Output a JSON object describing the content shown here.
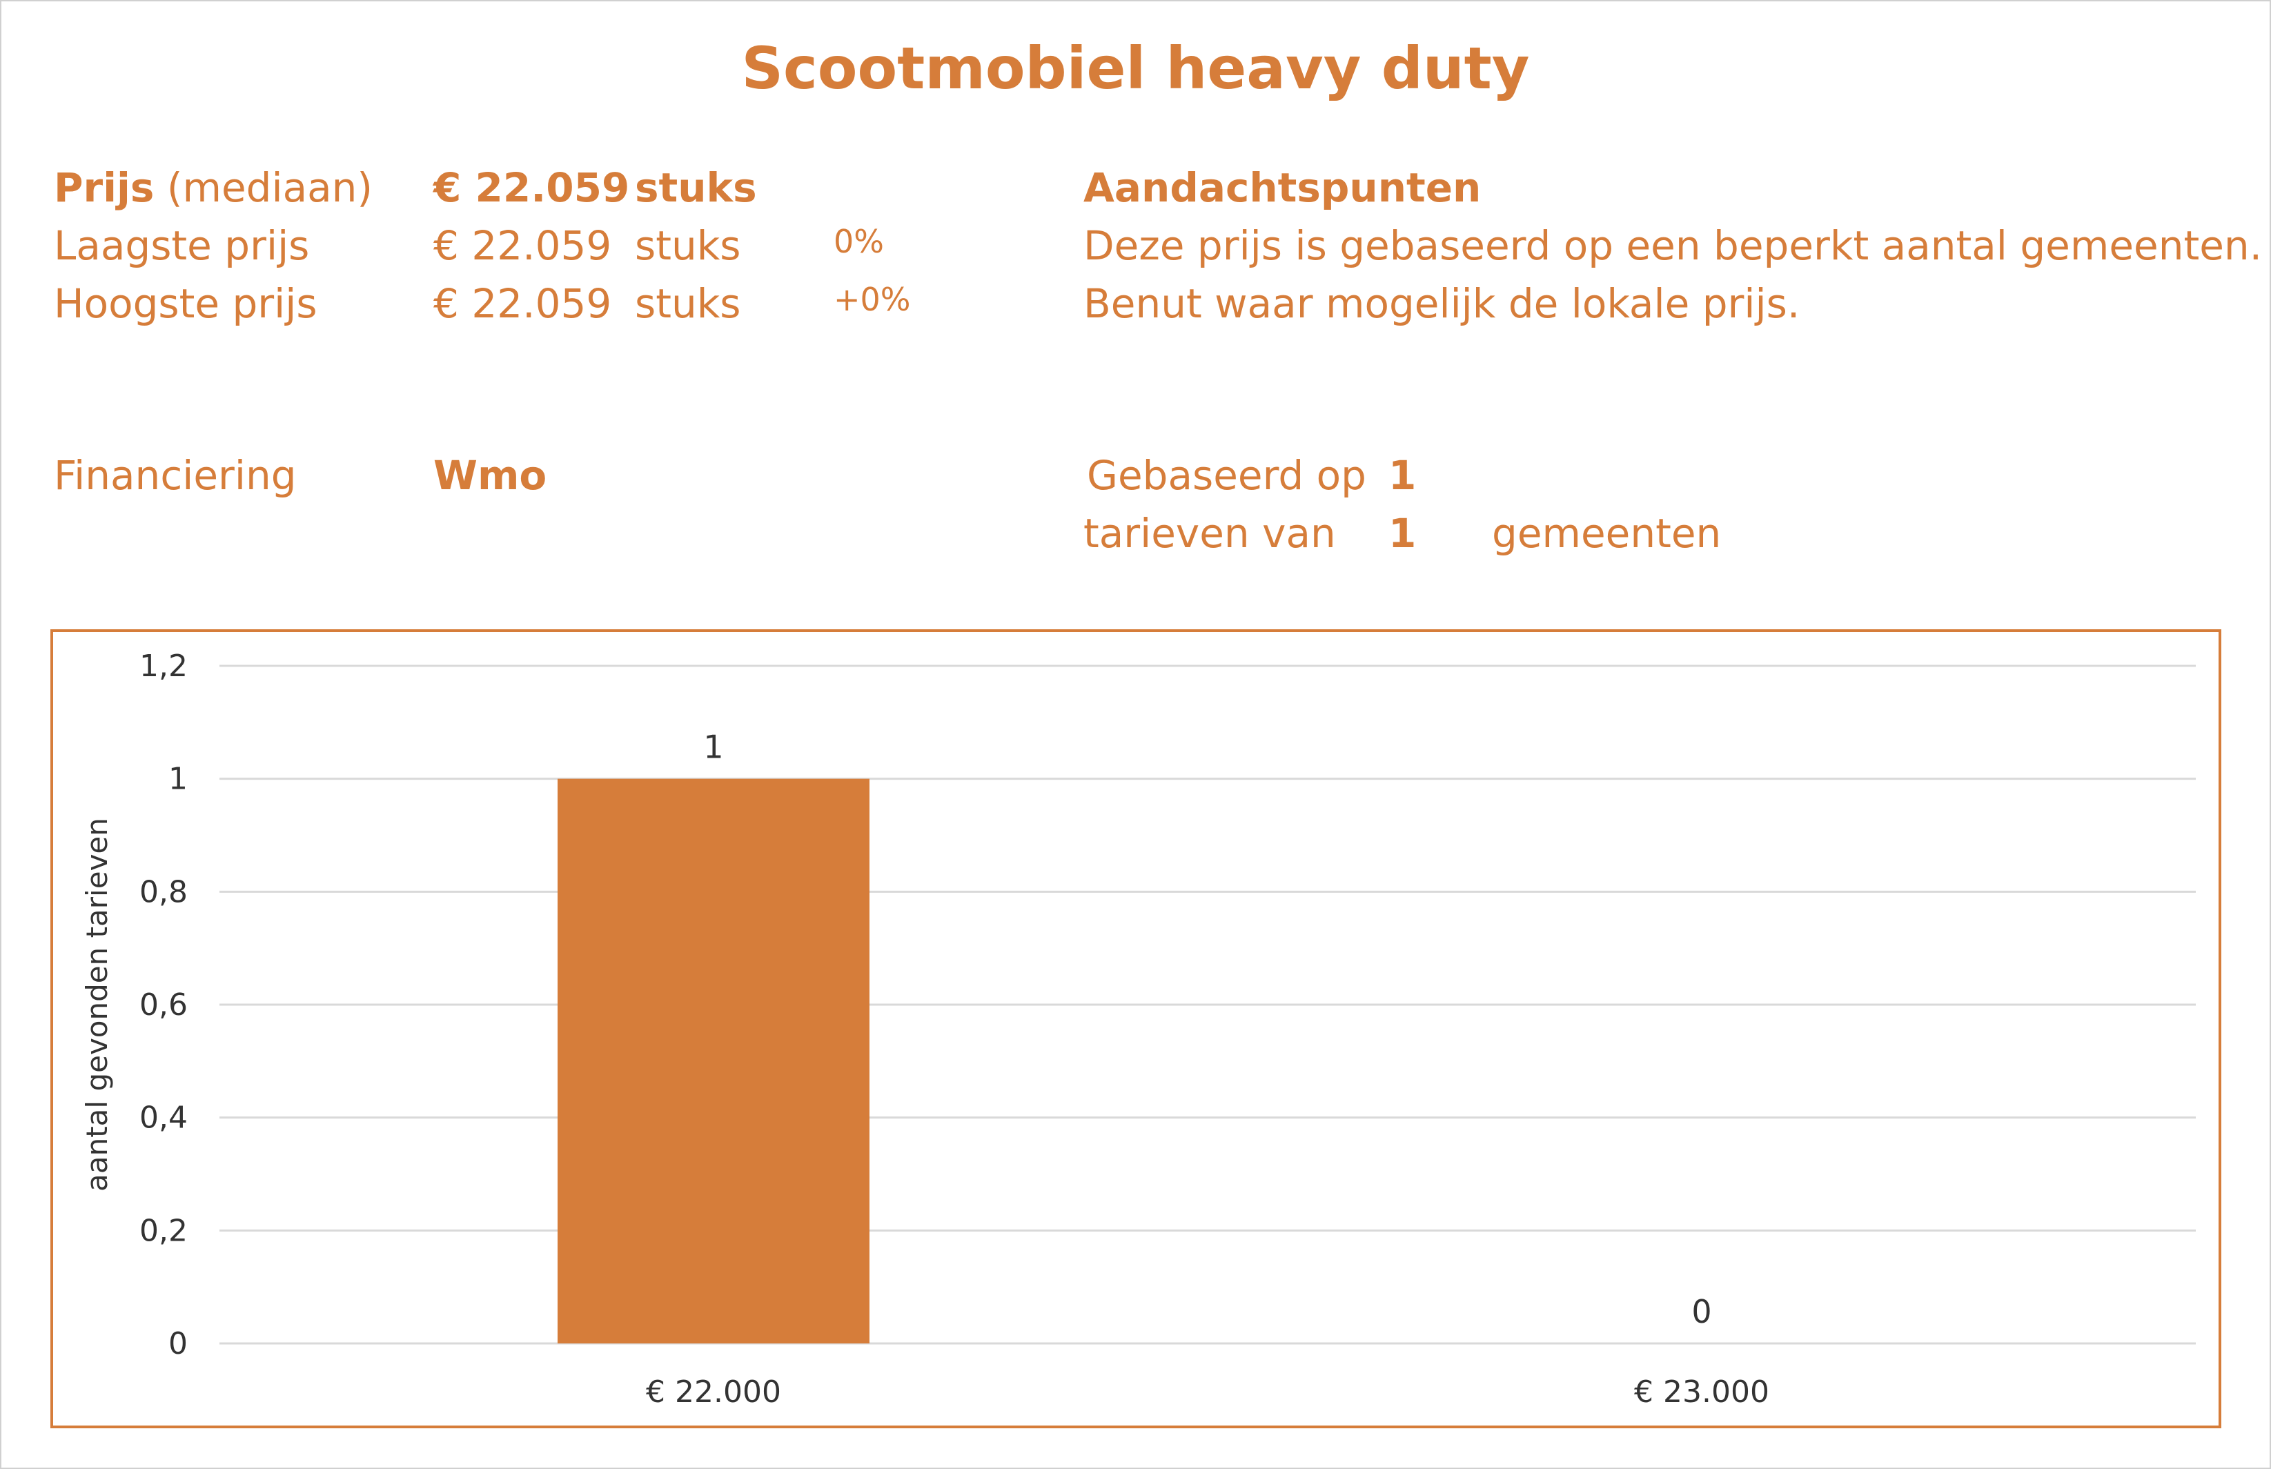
{
  "title": "Scootmobiel heavy duty",
  "summary": {
    "median": {
      "label": "Prijs",
      "qualifier": "(mediaan)",
      "price": "€ 22.059",
      "unit": "stuks"
    },
    "lowest": {
      "label": "Laagste prijs",
      "price": "€ 22.059",
      "unit": "stuks",
      "pct": "0%"
    },
    "highest": {
      "label": "Hoogste prijs",
      "price": "€ 22.059",
      "unit": "stuks",
      "pct": "+0%"
    }
  },
  "notes": {
    "heading": "Aandachtspunten",
    "line1": "Deze prijs is gebaseerd op een beperkt aantal gemeenten.",
    "line2": "Benut waar mogelijk de lokale prijs."
  },
  "financing": {
    "label": "Financiering",
    "value": "Wmo"
  },
  "basis": {
    "prefix1": "Gebaseerd op",
    "count1": "1",
    "prefix2": "tarieven van",
    "count2": "1",
    "suffix2": "gemeenten"
  },
  "colors": {
    "accent": "#D67D3A",
    "gridline": "#d9d9d9",
    "text": "#333333"
  },
  "chart_data": {
    "type": "bar",
    "categories": [
      "€ 22.000",
      "€ 23.000"
    ],
    "values": [
      1,
      0
    ],
    "data_labels": [
      "1",
      "0"
    ],
    "ylabel": "aantal gevonden tarieven",
    "ylim": [
      0,
      1.2
    ],
    "yticks": [
      0,
      0.2,
      0.4,
      0.6,
      0.8,
      1,
      1.2
    ],
    "ytick_labels": [
      "0",
      "0,2",
      "0,4",
      "0,6",
      "0,8",
      "1",
      "1,2"
    ],
    "grid": true,
    "legend": false
  }
}
